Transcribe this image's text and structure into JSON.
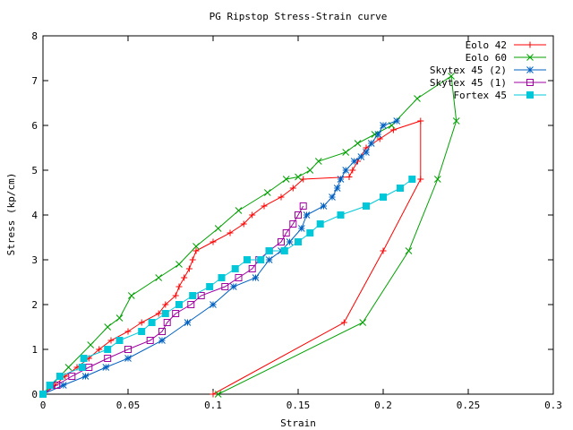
{
  "chart_data": {
    "type": "line",
    "title": "PG Ripstop Stress-Strain curve",
    "xlabel": "Strain",
    "ylabel": "Stress (kp/cm)",
    "xlim": [
      0,
      0.3
    ],
    "ylim": [
      0,
      8
    ],
    "x_ticks": [
      0,
      0.05,
      0.1,
      0.15,
      0.2,
      0.25,
      0.3
    ],
    "x_tick_labels": [
      "0",
      "0.05",
      "0.1",
      "0.15",
      "0.2",
      "0.25",
      "0.3"
    ],
    "y_ticks": [
      0,
      1,
      2,
      3,
      4,
      5,
      6,
      7,
      8
    ],
    "y_tick_labels": [
      "0",
      "1",
      "2",
      "3",
      "4",
      "5",
      "6",
      "7",
      "8"
    ],
    "grid": false,
    "legend_position": "top-right",
    "series": [
      {
        "name": "Eolo 42",
        "color": "#ff0000",
        "marker": "plus",
        "points": [
          [
            0,
            0
          ],
          [
            0.007,
            0.2
          ],
          [
            0.013,
            0.4
          ],
          [
            0.02,
            0.6
          ],
          [
            0.027,
            0.8
          ],
          [
            0.033,
            1.0
          ],
          [
            0.04,
            1.2
          ],
          [
            0.05,
            1.4
          ],
          [
            0.058,
            1.6
          ],
          [
            0.068,
            1.8
          ],
          [
            0.072,
            2.0
          ],
          [
            0.078,
            2.2
          ],
          [
            0.08,
            2.4
          ],
          [
            0.083,
            2.6
          ],
          [
            0.086,
            2.8
          ],
          [
            0.088,
            3.0
          ],
          [
            0.09,
            3.2
          ],
          [
            0.1,
            3.4
          ],
          [
            0.11,
            3.6
          ],
          [
            0.118,
            3.8
          ],
          [
            0.123,
            4.0
          ],
          [
            0.13,
            4.2
          ],
          [
            0.14,
            4.4
          ],
          [
            0.147,
            4.6
          ],
          [
            0.153,
            4.8
          ],
          [
            0.18,
            4.85
          ],
          [
            0.182,
            5.0
          ],
          [
            0.185,
            5.2
          ],
          [
            0.19,
            5.5
          ],
          [
            0.198,
            5.7
          ],
          [
            0.206,
            5.9
          ],
          [
            0.222,
            6.1
          ],
          [
            0.222,
            4.8
          ],
          [
            0.2,
            3.2
          ],
          [
            0.177,
            1.6
          ],
          [
            0.1,
            0
          ]
        ]
      },
      {
        "name": "Eolo 60",
        "color": "#00a000",
        "marker": "cross",
        "points": [
          [
            0,
            0
          ],
          [
            0.005,
            0.2
          ],
          [
            0.015,
            0.6
          ],
          [
            0.028,
            1.1
          ],
          [
            0.038,
            1.5
          ],
          [
            0.045,
            1.7
          ],
          [
            0.052,
            2.2
          ],
          [
            0.068,
            2.6
          ],
          [
            0.08,
            2.9
          ],
          [
            0.09,
            3.3
          ],
          [
            0.103,
            3.7
          ],
          [
            0.115,
            4.1
          ],
          [
            0.132,
            4.5
          ],
          [
            0.143,
            4.8
          ],
          [
            0.15,
            4.85
          ],
          [
            0.157,
            5.0
          ],
          [
            0.162,
            5.2
          ],
          [
            0.178,
            5.4
          ],
          [
            0.185,
            5.6
          ],
          [
            0.195,
            5.8
          ],
          [
            0.205,
            6.0
          ],
          [
            0.22,
            6.6
          ],
          [
            0.24,
            7.1
          ],
          [
            0.243,
            6.1
          ],
          [
            0.232,
            4.8
          ],
          [
            0.215,
            3.2
          ],
          [
            0.188,
            1.6
          ],
          [
            0.103,
            0
          ]
        ]
      },
      {
        "name": "Skytex 45 (2)",
        "color": "#0060c0",
        "marker": "star",
        "points": [
          [
            0,
            0
          ],
          [
            0.012,
            0.2
          ],
          [
            0.025,
            0.4
          ],
          [
            0.037,
            0.6
          ],
          [
            0.05,
            0.8
          ],
          [
            0.07,
            1.2
          ],
          [
            0.085,
            1.6
          ],
          [
            0.1,
            2.0
          ],
          [
            0.112,
            2.4
          ],
          [
            0.125,
            2.6
          ],
          [
            0.133,
            3.0
          ],
          [
            0.14,
            3.2
          ],
          [
            0.145,
            3.4
          ],
          [
            0.152,
            3.7
          ],
          [
            0.155,
            4.0
          ],
          [
            0.165,
            4.2
          ],
          [
            0.17,
            4.4
          ],
          [
            0.173,
            4.6
          ],
          [
            0.175,
            4.8
          ],
          [
            0.178,
            5.0
          ],
          [
            0.183,
            5.2
          ],
          [
            0.187,
            5.3
          ],
          [
            0.19,
            5.4
          ],
          [
            0.193,
            5.6
          ],
          [
            0.197,
            5.8
          ],
          [
            0.2,
            6.0
          ],
          [
            0.208,
            6.1
          ]
        ]
      },
      {
        "name": "Skytex 45 (1)",
        "color": "#a000a0",
        "marker": "square",
        "points": [
          [
            0,
            0
          ],
          [
            0.008,
            0.2
          ],
          [
            0.017,
            0.4
          ],
          [
            0.027,
            0.6
          ],
          [
            0.038,
            0.8
          ],
          [
            0.05,
            1.0
          ],
          [
            0.063,
            1.2
          ],
          [
            0.07,
            1.4
          ],
          [
            0.073,
            1.6
          ],
          [
            0.078,
            1.8
          ],
          [
            0.087,
            2.0
          ],
          [
            0.093,
            2.2
          ],
          [
            0.107,
            2.4
          ],
          [
            0.115,
            2.6
          ],
          [
            0.123,
            2.8
          ],
          [
            0.127,
            3.0
          ],
          [
            0.133,
            3.2
          ],
          [
            0.14,
            3.4
          ],
          [
            0.143,
            3.6
          ],
          [
            0.147,
            3.8
          ],
          [
            0.15,
            4.0
          ],
          [
            0.153,
            4.2
          ]
        ]
      },
      {
        "name": "Fortex 45",
        "color": "#00c8d8",
        "marker": "filled-square",
        "points": [
          [
            0,
            0
          ],
          [
            0.004,
            0.2
          ],
          [
            0.01,
            0.4
          ],
          [
            0.023,
            0.6
          ],
          [
            0.024,
            0.8
          ],
          [
            0.038,
            1.0
          ],
          [
            0.045,
            1.2
          ],
          [
            0.058,
            1.4
          ],
          [
            0.064,
            1.6
          ],
          [
            0.072,
            1.8
          ],
          [
            0.08,
            2.0
          ],
          [
            0.088,
            2.2
          ],
          [
            0.098,
            2.4
          ],
          [
            0.105,
            2.6
          ],
          [
            0.113,
            2.8
          ],
          [
            0.12,
            3.0
          ],
          [
            0.128,
            3.0
          ],
          [
            0.133,
            3.2
          ],
          [
            0.142,
            3.2
          ],
          [
            0.15,
            3.4
          ],
          [
            0.157,
            3.6
          ],
          [
            0.163,
            3.8
          ],
          [
            0.175,
            4.0
          ],
          [
            0.19,
            4.2
          ],
          [
            0.2,
            4.4
          ],
          [
            0.21,
            4.6
          ],
          [
            0.217,
            4.8
          ]
        ]
      }
    ]
  }
}
